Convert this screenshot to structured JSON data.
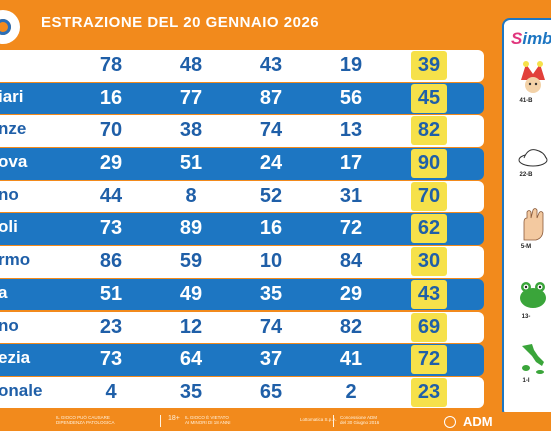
{
  "header": {
    "title": "ESTRAZIONE DEL 20 GENNAIO 2026"
  },
  "rows": [
    {
      "city": "",
      "nums": [
        "78",
        "48",
        "43",
        "19",
        "39"
      ],
      "style": "light"
    },
    {
      "city": "iari",
      "nums": [
        "16",
        "77",
        "87",
        "56",
        "45"
      ],
      "style": "blue"
    },
    {
      "city": "nze",
      "nums": [
        "70",
        "38",
        "74",
        "13",
        "82"
      ],
      "style": "light"
    },
    {
      "city": "ova",
      "nums": [
        "29",
        "51",
        "24",
        "17",
        "90"
      ],
      "style": "blue"
    },
    {
      "city": "no",
      "nums": [
        "44",
        "8",
        "52",
        "31",
        "70"
      ],
      "style": "light"
    },
    {
      "city": "oli",
      "nums": [
        "73",
        "89",
        "16",
        "72",
        "62"
      ],
      "style": "blue"
    },
    {
      "city": "rmo",
      "nums": [
        "86",
        "59",
        "10",
        "84",
        "30"
      ],
      "style": "light"
    },
    {
      "city": "a",
      "nums": [
        "51",
        "49",
        "35",
        "29",
        "43"
      ],
      "style": "blue"
    },
    {
      "city": "no",
      "nums": [
        "23",
        "12",
        "74",
        "82",
        "69"
      ],
      "style": "light"
    },
    {
      "city": "ezia",
      "nums": [
        "73",
        "64",
        "37",
        "41",
        "72"
      ],
      "style": "blue"
    },
    {
      "city": "onale",
      "nums": [
        "4",
        "35",
        "65",
        "2",
        "23"
      ],
      "style": "light"
    }
  ],
  "sidebar": {
    "title_s": "S",
    "title_rest": "imb",
    "items": [
      {
        "label": "41-B",
        "icon": "jester-icon"
      },
      {
        "label": "22-B",
        "icon": "clown-shoe-icon"
      },
      {
        "label": "5-M",
        "icon": "hand-icon"
      },
      {
        "label": "13-",
        "icon": "frog-icon"
      },
      {
        "label": "1-I",
        "icon": "italy-map-icon"
      }
    ]
  },
  "footer": {
    "warning1_a": "IL GIOCO PUÒ CAUSARE",
    "warning1_b": "DIPENDENZA PATOLOGICA",
    "age_badge": "18+",
    "warning2_a": "IL GIOCO È VIETATO",
    "warning2_b": "AI MINORI DI 18 ANNI",
    "operator": "Lottomatica S.p.A.",
    "concession_a": "Concessione ADM",
    "concession_b": "del 30 Giugno 2016",
    "brand": "ADM"
  },
  "colors": {
    "orange": "#f28a1c",
    "blue": "#1d76c2",
    "highlight": "#f6e14a"
  }
}
